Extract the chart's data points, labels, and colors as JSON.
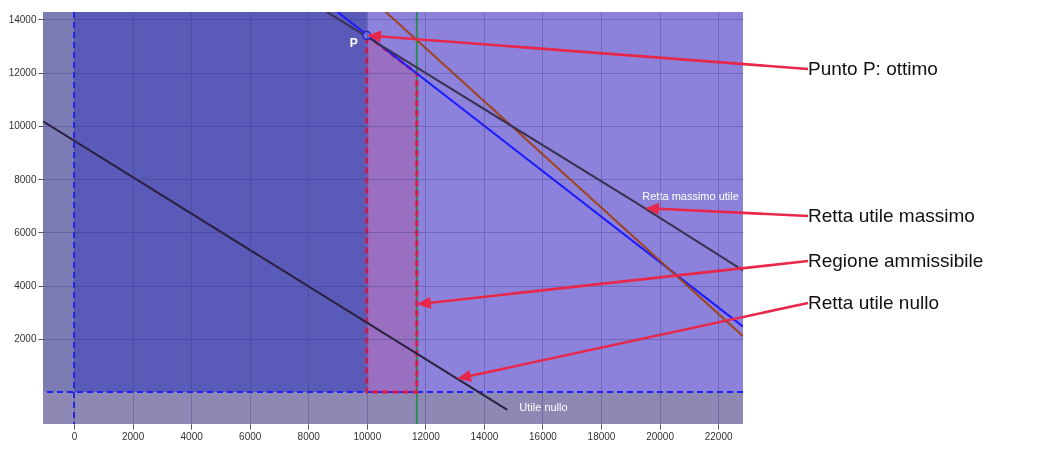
{
  "chart_data": {
    "type": "line",
    "xlim": [
      -1060,
      22850
    ],
    "xticks": [
      0,
      2000,
      4000,
      6000,
      8000,
      10000,
      12000,
      14000,
      16000,
      18000,
      20000,
      22000
    ],
    "ylim": [
      -1200,
      14280
    ],
    "yticks": [
      2000,
      4000,
      6000,
      8000,
      10000,
      12000,
      14000
    ],
    "grid": true,
    "series": [
      {
        "type": "area",
        "color": "#d81b4a",
        "line_style": "dashed",
        "x": [
          10000,
          11710
        ],
        "values": [
          13400,
          11970
        ]
      },
      {
        "color": "#1a1aff",
        "x": [
          9000,
          22850
        ],
        "values": [
          14280,
          2460
        ]
      },
      {
        "color": "#a0441c",
        "x": [
          10650,
          22850
        ],
        "values": [
          14280,
          2100
        ]
      },
      {
        "name": "Retta massimo utile",
        "color": "#3a3050",
        "x": [
          8630,
          19000,
          22850
        ],
        "values": [
          14280,
          7250,
          4570
        ]
      },
      {
        "name": "Utile nullo",
        "color": "#2a2040",
        "x": [
          -1060,
          14800
        ],
        "values": [
          10170,
          -670
        ]
      },
      {
        "type": "scatter",
        "name": "P",
        "color": "#6a78e8",
        "x": [
          10000
        ],
        "values": [
          13400
        ]
      }
    ],
    "ref_lines": [
      {
        "axis": "x",
        "value": 0,
        "color": "#2020ff",
        "line_style": "dashed"
      },
      {
        "axis": "y",
        "value": 0,
        "color": "#2020ff",
        "line_style": "dashed"
      },
      {
        "axis": "x",
        "value": 11710,
        "color": "#2e8b57",
        "line_style": "solid"
      }
    ],
    "bands": [
      {
        "axis": "x",
        "from": 0,
        "to": 10000,
        "color": "#5a5ab8"
      },
      {
        "axis": "x",
        "from": -1060,
        "to": 0,
        "color": "#7c7cb4"
      },
      {
        "axis": "y",
        "from": -1200,
        "to": 0,
        "color": "#8e88b4"
      }
    ],
    "annotations": [
      "Punto P: ottimo",
      "Retta utile massimo",
      "Regione ammissibile",
      "Retta utile nullo"
    ]
  }
}
